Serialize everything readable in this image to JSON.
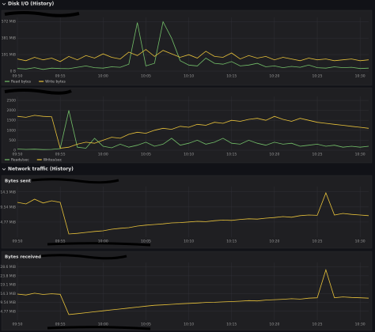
{
  "sections": [
    "Disk I/O (History)",
    "Network traffic (History)"
  ],
  "chart_data": [
    {
      "type": "line",
      "legend": "bottom-left",
      "grid": true,
      "categories": [
        "09:50",
        null,
        null,
        null,
        null,
        "09:55",
        null,
        null,
        null,
        null,
        "10:00",
        null,
        null,
        null,
        null,
        "10:05",
        null,
        null,
        null,
        null,
        "10:10",
        null,
        null,
        null,
        null,
        "10:15",
        null,
        null,
        null,
        null,
        "10:20",
        null,
        null,
        null,
        null,
        "10:25",
        null,
        null,
        null,
        null,
        "10:30",
        null
      ],
      "ylim": [
        0,
        620
      ],
      "yticks": [
        {
          "value": 0,
          "label": "0 B"
        },
        {
          "value": 190.7,
          "label": "191 MiB"
        },
        {
          "value": 381.5,
          "label": "381 MiB"
        },
        {
          "value": 572.2,
          "label": "572 MiB"
        }
      ],
      "series": [
        {
          "name": "Read bytes",
          "color": "#73bf69",
          "values": [
            30,
            25,
            40,
            20,
            35,
            30,
            28,
            45,
            60,
            40,
            35,
            50,
            45,
            80,
            560,
            60,
            90,
            570,
            380,
            120,
            70,
            60,
            150,
            90,
            80,
            110,
            60,
            70,
            90,
            50,
            60,
            40,
            55,
            45,
            70,
            40,
            35,
            50,
            40,
            45,
            30,
            35
          ]
        },
        {
          "name": "Write bytes",
          "color": "#e8c23a",
          "values": [
            140,
            120,
            160,
            130,
            150,
            110,
            170,
            130,
            180,
            150,
            200,
            160,
            140,
            220,
            180,
            250,
            170,
            240,
            200,
            160,
            190,
            150,
            230,
            170,
            160,
            210,
            140,
            180,
            150,
            170,
            130,
            160,
            140,
            120,
            150,
            130,
            140,
            120,
            130,
            140,
            120,
            130
          ]
        }
      ]
    },
    {
      "type": "line",
      "legend": "bottom-left",
      "grid": true,
      "categories": [
        "09:50",
        null,
        null,
        null,
        null,
        "09:55",
        null,
        null,
        null,
        null,
        "10:00",
        null,
        null,
        null,
        null,
        "10:05",
        null,
        null,
        null,
        null,
        "10:10",
        null,
        null,
        null,
        null,
        "10:15",
        null,
        null,
        null,
        null,
        "10:20",
        null,
        null,
        null,
        null,
        "10:25",
        null,
        null,
        null,
        null,
        "10:30",
        null
      ],
      "ylim": [
        0,
        2700
      ],
      "yticks": [
        0,
        500,
        1000,
        1500,
        2000,
        2500
      ],
      "series": [
        {
          "name": "Reads/sec",
          "color": "#73bf69",
          "values": [
            60,
            40,
            50,
            30,
            40,
            80,
            2000,
            150,
            100,
            600,
            200,
            120,
            300,
            150,
            250,
            400,
            200,
            300,
            600,
            250,
            350,
            500,
            300,
            400,
            600,
            350,
            300,
            500,
            350,
            250,
            400,
            300,
            350,
            200,
            250,
            300,
            200,
            250,
            150,
            200,
            150,
            200
          ]
        },
        {
          "name": "Writes/sec",
          "color": "#e8c23a",
          "values": [
            1700,
            1650,
            1750,
            1700,
            1680,
            100,
            150,
            300,
            400,
            350,
            500,
            650,
            600,
            800,
            900,
            850,
            1000,
            1100,
            1050,
            1200,
            1150,
            1300,
            1250,
            1400,
            1350,
            1500,
            1450,
            1550,
            1600,
            1500,
            1700,
            1550,
            1450,
            1600,
            1500,
            1400,
            1350,
            1300,
            1250,
            1200,
            1150,
            1100
          ]
        }
      ]
    },
    {
      "type": "line",
      "title": "Bytes sent",
      "grid": true,
      "categories": [
        "09:50",
        null,
        null,
        null,
        null,
        "09:55",
        null,
        null,
        null,
        null,
        "10:00",
        null,
        null,
        null,
        null,
        "10:05",
        null,
        null,
        null,
        null,
        "10:10",
        null,
        null,
        null,
        null,
        "10:15",
        null,
        null,
        null,
        null,
        "10:20",
        null,
        null,
        null,
        null,
        "10:25",
        null,
        null,
        null,
        null,
        "10:30",
        null
      ],
      "ylim": [
        0,
        16
      ],
      "yticks": [
        {
          "value": 4.77,
          "label": "4.77 MiB"
        },
        {
          "value": 9.54,
          "label": "9.54 MiB"
        },
        {
          "value": 14.31,
          "label": "14.3 MiB"
        }
      ],
      "color": "#e8c23a",
      "values": [
        11,
        10.5,
        12,
        10.8,
        11.5,
        11,
        1,
        1.2,
        1.5,
        1.8,
        2,
        2.5,
        2.8,
        3,
        3.5,
        3.8,
        4,
        4.2,
        4.5,
        4.6,
        4.8,
        5,
        4.9,
        5.2,
        5.4,
        5.3,
        5.6,
        5.8,
        5.7,
        6,
        6.2,
        6.5,
        6.3,
        6.8,
        7,
        6.9,
        14,
        7,
        7.5,
        7.2,
        7,
        6.8
      ]
    },
    {
      "type": "line",
      "title": "Bytes received",
      "grid": true,
      "categories": [
        "09:50",
        null,
        null,
        null,
        null,
        "09:55",
        null,
        null,
        null,
        null,
        "10:00",
        null,
        null,
        null,
        null,
        "10:05",
        null,
        null,
        null,
        null,
        "10:10",
        null,
        null,
        null,
        null,
        "10:15",
        null,
        null,
        null,
        null,
        "10:20",
        null,
        null,
        null,
        null,
        "10:25",
        null,
        null,
        null,
        null,
        "10:30",
        null
      ],
      "ylim": [
        0,
        31
      ],
      "yticks": [
        {
          "value": 4.77,
          "label": "4.77 MiB"
        },
        {
          "value": 9.54,
          "label": "9.54 MiB"
        },
        {
          "value": 14.31,
          "label": "14.3 MiB"
        },
        {
          "value": 19.07,
          "label": "19.1 MiB"
        },
        {
          "value": 23.84,
          "label": "23.8 MiB"
        },
        {
          "value": 28.61,
          "label": "28.6 MiB"
        }
      ],
      "color": "#e8c23a",
      "values": [
        14,
        13.5,
        14.5,
        13.8,
        14.2,
        13.9,
        3,
        3.5,
        4,
        4.5,
        5,
        5.5,
        6,
        6.5,
        7,
        7.5,
        8,
        8.2,
        8.5,
        8.8,
        9,
        9.2,
        9.5,
        9.6,
        9.8,
        10,
        10.2,
        10.5,
        10.3,
        10.8,
        11,
        11.2,
        11.5,
        11.3,
        11.8,
        12,
        27,
        12,
        12.5,
        12.2,
        12,
        11.8
      ]
    }
  ]
}
